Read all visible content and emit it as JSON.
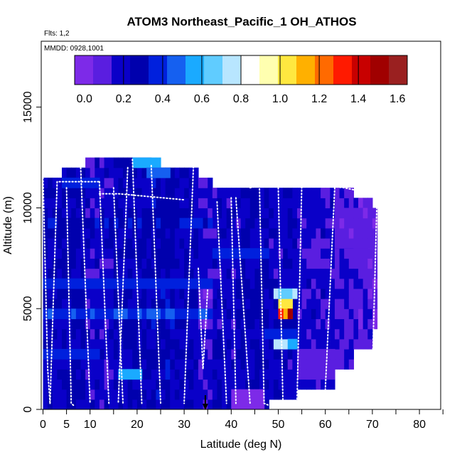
{
  "chart_data": {
    "type": "heatmap",
    "title": "ATOM3 Northeast_Pacific_1 OH_ATHOS",
    "flights_note": "Flts: 1,2",
    "dates_note": "MMDD: 0928,1001",
    "xlabel": "Latitude (deg N)",
    "ylabel": "Altitude (m)",
    "xlim": [
      0,
      85
    ],
    "ylim": [
      0,
      18000
    ],
    "x_ticks": [
      0,
      5,
      10,
      20,
      30,
      40,
      50,
      60,
      70,
      80
    ],
    "x_minor_ticks": [
      0,
      5,
      10,
      15,
      20,
      25,
      30,
      35,
      40,
      45,
      50,
      55,
      60,
      65,
      70,
      75,
      80,
      85
    ],
    "y_ticks": [
      0,
      5000,
      10000,
      15000
    ],
    "colorbar": {
      "min": -0.05,
      "max": 1.65,
      "ticks": [
        0.0,
        0.2,
        0.4,
        0.6,
        0.8,
        1.0,
        1.2,
        1.4,
        1.6
      ],
      "tick_labels": [
        "0.0",
        "0.2",
        "0.4",
        "0.6",
        "0.8",
        "1.0",
        "1.2",
        "1.4",
        "1.6"
      ]
    },
    "colors": {
      "scale": [
        "#7d2ae8",
        "#5a1ee0",
        "#0a00c8",
        "#0000ad",
        "#0020dd",
        "#1560f0",
        "#1aaaff",
        "#60ccff",
        "#b8e6ff",
        "#ffffff",
        "#ffffb0",
        "#ffe840",
        "#ffb000",
        "#ff6a00",
        "#ff1a00",
        "#c80000",
        "#a00000",
        "#9a2020"
      ],
      "track": "#ffffff",
      "marker": "#000000"
    },
    "cell_size": {
      "lat": 1.0,
      "alt": 500
    },
    "columns": [
      {
        "lat_range": [
          0,
          4
        ],
        "alt_range": [
          0,
          11500
        ],
        "value": 0.22
      },
      {
        "lat_range": [
          4,
          9
        ],
        "alt_range": [
          0,
          12000
        ],
        "value": 0.25
      },
      {
        "lat_range": [
          9,
          15
        ],
        "alt_range": [
          0,
          12500
        ],
        "value": 0.18
      },
      {
        "lat_range": [
          15,
          23
        ],
        "alt_range": [
          0,
          12500
        ],
        "value": 0.22
      },
      {
        "lat_range": [
          23,
          28
        ],
        "alt_range": [
          0,
          12000
        ],
        "value": 0.27
      },
      {
        "lat_range": [
          28,
          33
        ],
        "alt_range": [
          0,
          12000
        ],
        "value": 0.22
      },
      {
        "lat_range": [
          33,
          36
        ],
        "alt_range": [
          0,
          11500
        ],
        "value": 0.16
      },
      {
        "lat_range": [
          36,
          42
        ],
        "alt_range": [
          0,
          11000
        ],
        "value": 0.2
      },
      {
        "lat_range": [
          42,
          48
        ],
        "alt_range": [
          0,
          11000
        ],
        "value": 0.25
      },
      {
        "lat_range": [
          48,
          54
        ],
        "alt_range": [
          500,
          11000
        ],
        "value": 0.2
      },
      {
        "lat_range": [
          54,
          62
        ],
        "alt_range": [
          1000,
          11000
        ],
        "value": 0.17
      },
      {
        "lat_range": [
          62,
          66
        ],
        "alt_range": [
          2000,
          11000
        ],
        "value": 0.12
      },
      {
        "lat_range": [
          66,
          70
        ],
        "alt_range": [
          3000,
          10500
        ],
        "value": 0.1
      },
      {
        "lat_range": [
          70,
          71
        ],
        "alt_range": [
          4000,
          10000
        ],
        "value": 0.05
      }
    ],
    "highlights": [
      {
        "lat_range": [
          16,
          21
        ],
        "alt_range": [
          1500,
          2000
        ],
        "value": 0.6
      },
      {
        "lat_range": [
          19,
          25
        ],
        "alt_range": [
          12000,
          12500
        ],
        "value": 0.55
      },
      {
        "lat_range": [
          22,
          27
        ],
        "alt_range": [
          11500,
          12000
        ],
        "value": 0.45
      },
      {
        "lat_range": [
          4,
          12
        ],
        "alt_range": [
          11000,
          11500
        ],
        "value": 0.4
      },
      {
        "lat_range": [
          50,
          53
        ],
        "alt_range": [
          5000,
          5500
        ],
        "value": 1.05
      },
      {
        "lat_range": [
          51,
          53
        ],
        "alt_range": [
          4500,
          5000
        ],
        "value": 1.2
      },
      {
        "lat_range": [
          52,
          53
        ],
        "alt_range": [
          4500,
          5000
        ],
        "value": 1.5
      },
      {
        "lat_range": [
          50,
          51
        ],
        "alt_range": [
          4500,
          5000
        ],
        "value": 1.35
      },
      {
        "lat_range": [
          49,
          54
        ],
        "alt_range": [
          5500,
          6000
        ],
        "value": 0.7
      },
      {
        "lat_range": [
          49,
          52
        ],
        "alt_range": [
          3000,
          3500
        ],
        "value": 0.75
      },
      {
        "lat_range": [
          47,
          54
        ],
        "alt_range": [
          3500,
          4000
        ],
        "value": 0.4
      },
      {
        "lat_range": [
          52,
          54
        ],
        "alt_range": [
          3000,
          3500
        ],
        "value": 0.55
      },
      {
        "lat_range": [
          40,
          47
        ],
        "alt_range": [
          0,
          1000
        ],
        "value": 0.02
      },
      {
        "lat_range": [
          33,
          36
        ],
        "alt_range": [
          4000,
          6000
        ],
        "value": 0.05
      },
      {
        "lat_range": [
          54,
          62
        ],
        "alt_range": [
          1500,
          3000
        ],
        "value": 0.08
      },
      {
        "lat_range": [
          62,
          71
        ],
        "alt_range": [
          8000,
          10000
        ],
        "value": 0.06
      },
      {
        "lat_range": [
          0,
          36
        ],
        "alt_range": [
          4500,
          5000
        ],
        "value": 0.42
      },
      {
        "lat_range": [
          0,
          36
        ],
        "alt_range": [
          6000,
          6500
        ],
        "value": 0.36
      },
      {
        "lat_range": [
          0,
          36
        ],
        "alt_range": [
          9000,
          9500
        ],
        "value": 0.32
      },
      {
        "lat_range": [
          36,
          48
        ],
        "alt_range": [
          7500,
          8000
        ],
        "value": 0.38
      },
      {
        "lat_range": [
          0,
          12
        ],
        "alt_range": [
          2500,
          3000
        ],
        "value": 0.38
      }
    ],
    "flight_tracks": [
      {
        "points": [
          [
            0,
            11500
          ],
          [
            1,
            2000
          ],
          [
            1.5,
            300
          ]
        ]
      },
      {
        "points": [
          [
            1.5,
            300
          ],
          [
            3,
            11300
          ],
          [
            12,
            11300
          ]
        ]
      },
      {
        "points": [
          [
            5,
            11000
          ],
          [
            6,
            300
          ],
          [
            6.5,
            200
          ]
        ]
      },
      {
        "points": [
          [
            8,
            12000
          ],
          [
            10,
            300
          ]
        ]
      },
      {
        "points": [
          [
            12,
            11300
          ],
          [
            14,
            300
          ]
        ]
      },
      {
        "points": [
          [
            12,
            10700
          ],
          [
            16,
            10700
          ],
          [
            30,
            10400
          ]
        ]
      },
      {
        "points": [
          [
            15,
            11000
          ],
          [
            17,
            300
          ]
        ]
      },
      {
        "points": [
          [
            18,
            12000
          ],
          [
            16,
            300
          ]
        ]
      },
      {
        "points": [
          [
            19,
            12400
          ],
          [
            21,
            300
          ]
        ]
      },
      {
        "points": [
          [
            23,
            12100
          ],
          [
            25,
            300
          ]
        ]
      },
      {
        "points": [
          [
            26,
            12500
          ],
          [
            27,
            12400
          ],
          [
            32,
            12200
          ]
        ]
      },
      {
        "points": [
          [
            32,
            12200
          ],
          [
            30,
            300
          ]
        ]
      },
      {
        "points": [
          [
            33,
            7000
          ],
          [
            34,
            2000
          ],
          [
            35,
            6000
          ]
        ]
      },
      {
        "points": [
          [
            37,
            10300
          ],
          [
            39,
            300
          ]
        ]
      },
      {
        "points": [
          [
            40,
            10500
          ],
          [
            41,
            300
          ]
        ]
      },
      {
        "points": [
          [
            41,
            10500
          ],
          [
            44,
            300
          ]
        ]
      },
      {
        "points": [
          [
            44,
            11000
          ],
          [
            46,
            11100
          ]
        ]
      },
      {
        "points": [
          [
            46,
            11100
          ],
          [
            47,
            300
          ],
          [
            48,
            200
          ]
        ]
      },
      {
        "points": [
          [
            50,
            11000
          ],
          [
            51,
            300
          ]
        ]
      },
      {
        "points": [
          [
            55,
            11200
          ],
          [
            54,
            500
          ]
        ]
      },
      {
        "points": [
          [
            57,
            11200
          ],
          [
            60,
            11100
          ],
          [
            64,
            11000
          ],
          [
            70,
            10700
          ]
        ]
      },
      {
        "points": [
          [
            62,
            11000
          ],
          [
            60,
            1000
          ]
        ]
      },
      {
        "points": [
          [
            71,
            10500
          ],
          [
            70,
            2000
          ]
        ]
      }
    ],
    "marker": {
      "lat": 34.5,
      "alt": 0
    }
  }
}
